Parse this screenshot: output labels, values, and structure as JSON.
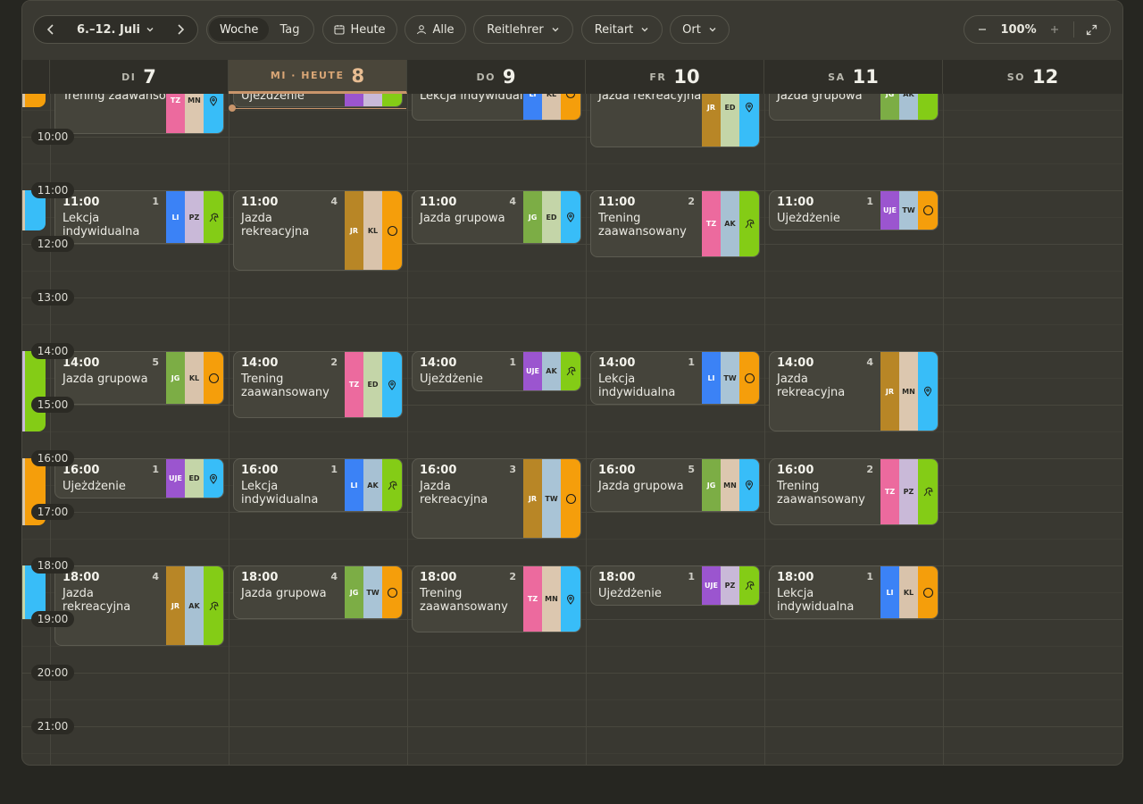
{
  "toolbar": {
    "date_range": "6.–12. Juli",
    "view_week": "Woche",
    "view_day": "Tag",
    "today": "Heute",
    "all": "Alle",
    "filter_instructor": "Reitlehrer",
    "filter_type": "Reitart",
    "filter_location": "Ort",
    "zoom": "100%"
  },
  "days": [
    {
      "dow": "DI",
      "num": "7"
    },
    {
      "dow": "MI · HEUTE",
      "num": "8",
      "today": true
    },
    {
      "dow": "DO",
      "num": "9"
    },
    {
      "dow": "FR",
      "num": "10"
    },
    {
      "dow": "SA",
      "num": "11"
    },
    {
      "dow": "SO",
      "num": "12"
    }
  ],
  "times": [
    "10:00",
    "11:00",
    "12:00",
    "13:00",
    "14:00",
    "15:00",
    "16:00",
    "17:00",
    "18:00",
    "19:00",
    "20:00",
    "21:00"
  ],
  "partial_names": {
    "di": "Trening zaawansowany",
    "mi": "Ujeżdżenie",
    "do": "Lekcja indywidualna",
    "fr": "Jazda rekreacyjna",
    "sa": "Jazda grupowa"
  },
  "events": [
    {
      "day": "DI",
      "time": "11:00",
      "count": "1",
      "name": "Lekcja indywidualna",
      "tags": [
        "LI",
        "PZ"
      ],
      "icon": "horse-icon"
    },
    {
      "day": "DI",
      "time": "14:00",
      "count": "5",
      "name": "Jazda grupowa",
      "tags": [
        "JG",
        "KL"
      ],
      "icon": "circle-icon"
    },
    {
      "day": "DI",
      "time": "16:00",
      "count": "1",
      "name": "Ujeżdżenie",
      "tags": [
        "UJE",
        "ED"
      ],
      "icon": "pin-icon"
    },
    {
      "day": "DI",
      "time": "18:00",
      "count": "4",
      "name": "Jazda rekreacyjna",
      "tags": [
        "JR",
        "AK"
      ],
      "icon": "horse-icon"
    },
    {
      "day": "MI",
      "time": "11:00",
      "count": "4",
      "name": "Jazda rekreacyjna",
      "tags": [
        "JR",
        "KL"
      ],
      "icon": "circle-icon"
    },
    {
      "day": "MI",
      "time": "14:00",
      "count": "2",
      "name": "Trening zaawansowany",
      "tags": [
        "TZ",
        "ED"
      ],
      "icon": "pin-icon"
    },
    {
      "day": "MI",
      "time": "16:00",
      "count": "1",
      "name": "Lekcja indywidualna",
      "tags": [
        "LI",
        "AK"
      ],
      "icon": "horse-icon"
    },
    {
      "day": "MI",
      "time": "18:00",
      "count": "4",
      "name": "Jazda grupowa",
      "tags": [
        "JG",
        "TW"
      ],
      "icon": "circle-icon"
    },
    {
      "day": "DO",
      "time": "11:00",
      "count": "4",
      "name": "Jazda grupowa",
      "tags": [
        "JG",
        "ED"
      ],
      "icon": "pin-icon"
    },
    {
      "day": "DO",
      "time": "14:00",
      "count": "1",
      "name": "Ujeżdżenie",
      "tags": [
        "UJE",
        "AK"
      ],
      "icon": "horse-icon"
    },
    {
      "day": "DO",
      "time": "16:00",
      "count": "3",
      "name": "Jazda rekreacyjna",
      "tags": [
        "JR",
        "TW"
      ],
      "icon": "circle-icon"
    },
    {
      "day": "DO",
      "time": "18:00",
      "count": "2",
      "name": "Trening zaawansowany",
      "tags": [
        "TZ",
        "MN"
      ],
      "icon": "pin-icon"
    },
    {
      "day": "FR",
      "time": "11:00",
      "count": "2",
      "name": "Trening zaawansowany",
      "tags": [
        "TZ",
        "AK"
      ],
      "icon": "horse-icon"
    },
    {
      "day": "FR",
      "time": "14:00",
      "count": "1",
      "name": "Lekcja indywidualna",
      "tags": [
        "LI",
        "TW"
      ],
      "icon": "circle-icon"
    },
    {
      "day": "FR",
      "time": "16:00",
      "count": "5",
      "name": "Jazda grupowa",
      "tags": [
        "JG",
        "MN"
      ],
      "icon": "pin-icon"
    },
    {
      "day": "FR",
      "time": "18:00",
      "count": "1",
      "name": "Ujeżdżenie",
      "tags": [
        "UJE",
        "PZ"
      ],
      "icon": "horse-icon"
    },
    {
      "day": "SA",
      "time": "11:00",
      "count": "1",
      "name": "Ujeżdżenie",
      "tags": [
        "UJE",
        "TW"
      ],
      "icon": "circle-icon"
    },
    {
      "day": "SA",
      "time": "14:00",
      "count": "4",
      "name": "Jazda rekreacyjna",
      "tags": [
        "JR",
        "MN"
      ],
      "icon": "pin-icon"
    },
    {
      "day": "SA",
      "time": "16:00",
      "count": "2",
      "name": "Trening zaawansowany",
      "tags": [
        "TZ",
        "PZ"
      ],
      "icon": "horse-icon"
    },
    {
      "day": "SA",
      "time": "18:00",
      "count": "1",
      "name": "Lekcja indywidualna",
      "tags": [
        "LI",
        "KL"
      ],
      "icon": "circle-icon"
    }
  ],
  "partial_tags": {
    "di": [
      "TZ",
      "MN"
    ],
    "do": [
      "LI",
      "KL"
    ],
    "fr": [
      "JR",
      "ED"
    ],
    "sa": [
      "JG",
      "AK"
    ]
  },
  "colors": {
    "LI": "#3b82f6",
    "JG": "#7cad45",
    "JR": "#b88626",
    "TZ": "#ec6a9e",
    "UJE": "#9b55cf",
    "PZ": "#c9b9d8",
    "KL": "#d9c3ab",
    "ED": "#c4d5a8",
    "AK": "#a7c1d3",
    "TW": "#a9c4d6",
    "MN": "#dcc7af",
    "pin-icon": "#38bdf8",
    "circle-icon": "#f59e0b",
    "horse-icon": "#84cc16",
    "today_accent": "#c9956b"
  }
}
